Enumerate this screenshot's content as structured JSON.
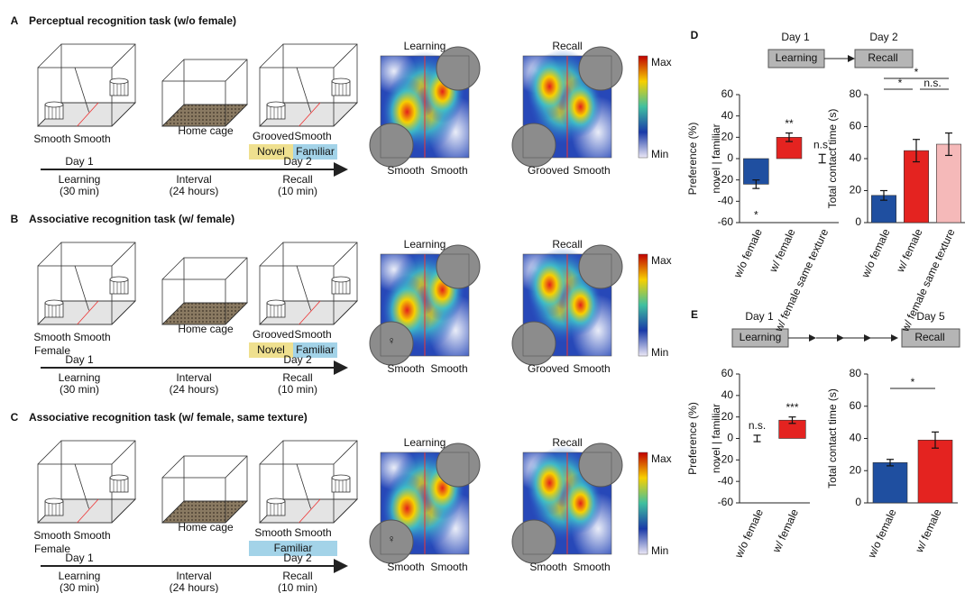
{
  "panels": [
    {
      "letter": "A",
      "title": "Perceptual recognition task (w/o female)",
      "learning": [
        "Smooth",
        "Smooth"
      ],
      "home": "Home cage",
      "recall": [
        "Grooved",
        "Smooth"
      ],
      "tags": [
        "Novel",
        "Familiar"
      ],
      "tag_colors": [
        "#efe08f",
        "#a3d3e8"
      ],
      "timeline": [
        {
          "day": "Day 1",
          "name": "Learning",
          "duration": "(30 min)"
        },
        {
          "name": "Interval",
          "duration": "(24 hours)"
        },
        {
          "day": "Day 2",
          "name": "Recall",
          "duration": "(10 min)"
        }
      ],
      "maps": [
        {
          "title": "Learning",
          "labels": [
            "Smooth",
            "Smooth"
          ]
        },
        {
          "title": "Recall",
          "labels": [
            "Grooved",
            "Smooth"
          ]
        }
      ],
      "scale": [
        "Max",
        "Min"
      ]
    },
    {
      "letter": "B",
      "title": "Associative recognition task (w/ female)",
      "learning": [
        "Smooth",
        "Smooth"
      ],
      "female": "Female",
      "female_symbol": "♀",
      "home": "Home cage",
      "recall": [
        "Grooved",
        "Smooth"
      ],
      "tags": [
        "Novel",
        "Familiar"
      ],
      "tag_colors": [
        "#efe08f",
        "#a3d3e8"
      ],
      "timeline": [
        {
          "day": "Day 1",
          "name": "Learning",
          "duration": "(30 min)"
        },
        {
          "name": "Interval",
          "duration": "(24 hours)"
        },
        {
          "day": "Day 2",
          "name": "Recall",
          "duration": "(10 min)"
        }
      ],
      "maps": [
        {
          "title": "Learning",
          "labels": [
            "Smooth",
            "Smooth"
          ]
        },
        {
          "title": "Recall",
          "labels": [
            "Grooved",
            "Smooth"
          ]
        }
      ],
      "scale": [
        "Max",
        "Min"
      ]
    },
    {
      "letter": "C",
      "title": "Associative recognition task (w/ female, same texture)",
      "learning": [
        "Smooth",
        "Smooth"
      ],
      "female": "Female",
      "female_symbol": "♀",
      "home": "Home cage",
      "recall": [
        "Smooth",
        "Smooth"
      ],
      "tags": [
        "Familiar"
      ],
      "tag_colors": [
        "#a3d3e8"
      ],
      "timeline": [
        {
          "day": "Day 1",
          "name": "Learning",
          "duration": "(30 min)"
        },
        {
          "name": "Interval",
          "duration": "(24 hours)"
        },
        {
          "day": "Day 2",
          "name": "Recall",
          "duration": "(10 min)"
        }
      ],
      "maps": [
        {
          "title": "Learning",
          "labels": [
            "Smooth",
            "Smooth"
          ]
        },
        {
          "title": "Recall",
          "labels": [
            "Smooth",
            "Smooth"
          ]
        }
      ],
      "scale": [
        "Max",
        "Min"
      ]
    }
  ],
  "flows": [
    {
      "letter": "D",
      "days": [
        "Day 1",
        "Day 2"
      ],
      "steps": [
        "Learning",
        "Recall"
      ]
    },
    {
      "letter": "E",
      "days": [
        "Day 1",
        "Day 5"
      ],
      "steps": [
        "Learning",
        "Recall"
      ]
    }
  ],
  "chart_data": [
    {
      "type": "bar",
      "ylabel": [
        "Preference (%)",
        "novel | familiar"
      ],
      "categories": [
        "w/o female",
        "w/ female",
        "w/ female same texture"
      ],
      "values": [
        -24,
        20,
        0
      ],
      "errors": [
        4,
        4,
        4
      ],
      "colors": [
        "#1f4fa0",
        "#e42320",
        "#f5b9b9"
      ],
      "annotations": [
        "*",
        "**",
        "n.s."
      ],
      "ylim": [
        -60,
        60
      ],
      "yticks": [
        -60,
        -40,
        -20,
        0,
        20,
        40,
        60
      ]
    },
    {
      "type": "bar",
      "ylabel": [
        "Total contact time (s)"
      ],
      "categories": [
        "w/o female",
        "w/ female",
        "w/ female same texture"
      ],
      "values": [
        17,
        45,
        49
      ],
      "errors": [
        3,
        7,
        7
      ],
      "colors": [
        "#1f4fa0",
        "#e42320",
        "#f5b9b9"
      ],
      "brackets": [
        {
          "from": 0,
          "to": 2,
          "label": "*"
        },
        {
          "from": 0,
          "to": 1,
          "label": "*"
        },
        {
          "from": 1,
          "to": 2,
          "label": "n.s."
        }
      ],
      "ylim": [
        0,
        80
      ],
      "yticks": [
        0,
        20,
        40,
        60,
        80
      ]
    },
    {
      "type": "bar",
      "ylabel": [
        "Preference (%)",
        "novel | familiar"
      ],
      "categories": [
        "w/o female",
        "w/ female"
      ],
      "values": [
        0,
        17
      ],
      "errors": [
        3,
        3
      ],
      "colors": [
        "#1f4fa0",
        "#e42320"
      ],
      "annotations": [
        "n.s.",
        "***"
      ],
      "ylim": [
        -60,
        60
      ],
      "yticks": [
        -60,
        -40,
        -20,
        0,
        20,
        40,
        60
      ]
    },
    {
      "type": "bar",
      "ylabel": [
        "Total contact time (s)"
      ],
      "categories": [
        "w/o female",
        "w/ female"
      ],
      "values": [
        25,
        39
      ],
      "errors": [
        2,
        5
      ],
      "colors": [
        "#1f4fa0",
        "#e42320"
      ],
      "brackets": [
        {
          "from": 0,
          "to": 1,
          "label": "*"
        }
      ],
      "ylim": [
        0,
        80
      ],
      "yticks": [
        0,
        20,
        40,
        60,
        80
      ]
    }
  ]
}
